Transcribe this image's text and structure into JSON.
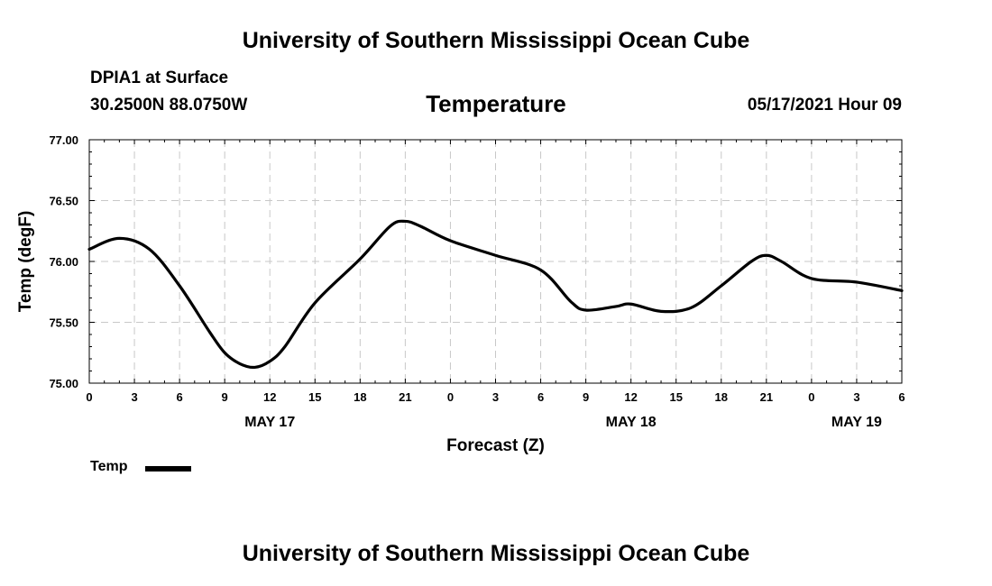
{
  "header": {
    "main_title": "University of Southern Mississippi Ocean Cube",
    "station": "DPIA1 at Surface",
    "coords": "30.2500N  88.0750W",
    "chart_title": "Temperature",
    "issued": "05/17/2021 Hour 09"
  },
  "footer": {
    "main_title": "University of Southern Mississippi Ocean Cube"
  },
  "legend": {
    "label": "Temp",
    "color": "#000000"
  },
  "chart_data": {
    "type": "line",
    "title": "Temperature",
    "xlabel": "Forecast (Z)",
    "ylabel": "Temp (degF)",
    "grid": true,
    "xlim": [
      0,
      54
    ],
    "ylim": [
      75.0,
      77.0
    ],
    "yticks": [
      "75.00",
      "75.50",
      "76.00",
      "76.50",
      "77.00"
    ],
    "ytick_values": [
      75.0,
      75.5,
      76.0,
      76.5,
      77.0
    ],
    "xticks": [
      "0",
      "3",
      "6",
      "9",
      "12",
      "15",
      "18",
      "21",
      "0",
      "3",
      "6",
      "9",
      "12",
      "15",
      "18",
      "21",
      "0",
      "3",
      "6"
    ],
    "date_labels": [
      {
        "label": "MAY 17",
        "hour": 12
      },
      {
        "label": "MAY 18",
        "hour": 36
      },
      {
        "label": "MAY 19",
        "hour": 51
      }
    ],
    "series": [
      {
        "name": "Temp",
        "x": [
          0,
          2,
          4,
          6,
          8,
          9,
          10,
          11,
          12,
          13,
          15,
          18,
          20,
          21,
          22,
          24,
          27,
          30,
          32,
          33,
          35,
          36,
          38,
          40,
          42,
          44,
          45,
          46,
          48,
          51,
          54
        ],
        "values": [
          76.1,
          76.19,
          76.1,
          75.8,
          75.42,
          75.25,
          75.16,
          75.13,
          75.18,
          75.3,
          75.66,
          76.02,
          76.29,
          76.33,
          76.29,
          76.17,
          76.05,
          75.93,
          75.67,
          75.6,
          75.63,
          75.65,
          75.59,
          75.62,
          75.8,
          76.0,
          76.05,
          76.0,
          75.86,
          75.83,
          75.76
        ]
      }
    ]
  }
}
